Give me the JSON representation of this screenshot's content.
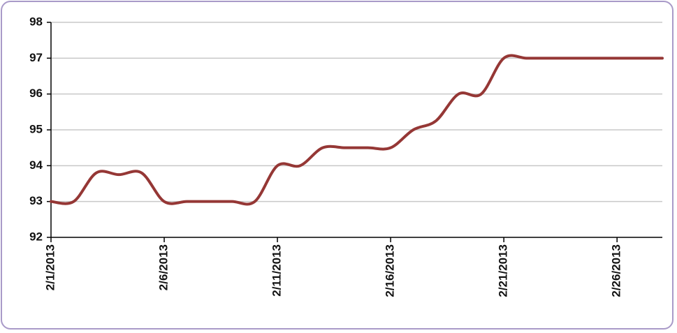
{
  "chart_data": {
    "type": "line",
    "categories": [
      "2/1/2013",
      null,
      null,
      null,
      null,
      "2/6/2013",
      null,
      null,
      null,
      null,
      "2/11/2013",
      null,
      null,
      null,
      null,
      "2/16/2013",
      null,
      null,
      null,
      null,
      "2/21/2013",
      null,
      null,
      null,
      null,
      "2/26/2013",
      null,
      null
    ],
    "series": [
      {
        "color": "#953735",
        "values": [
          93,
          93,
          93.8,
          93.75,
          93.8,
          93,
          93,
          93,
          93,
          93,
          94,
          94,
          94.5,
          94.5,
          94.5,
          94.5,
          95,
          95.25,
          96,
          96,
          97,
          97,
          97,
          97,
          97,
          97,
          97,
          97
        ]
      }
    ],
    "ylim": [
      92,
      98
    ],
    "yticks": [
      92,
      93,
      94,
      95,
      96,
      97,
      98
    ],
    "grid": true
  }
}
